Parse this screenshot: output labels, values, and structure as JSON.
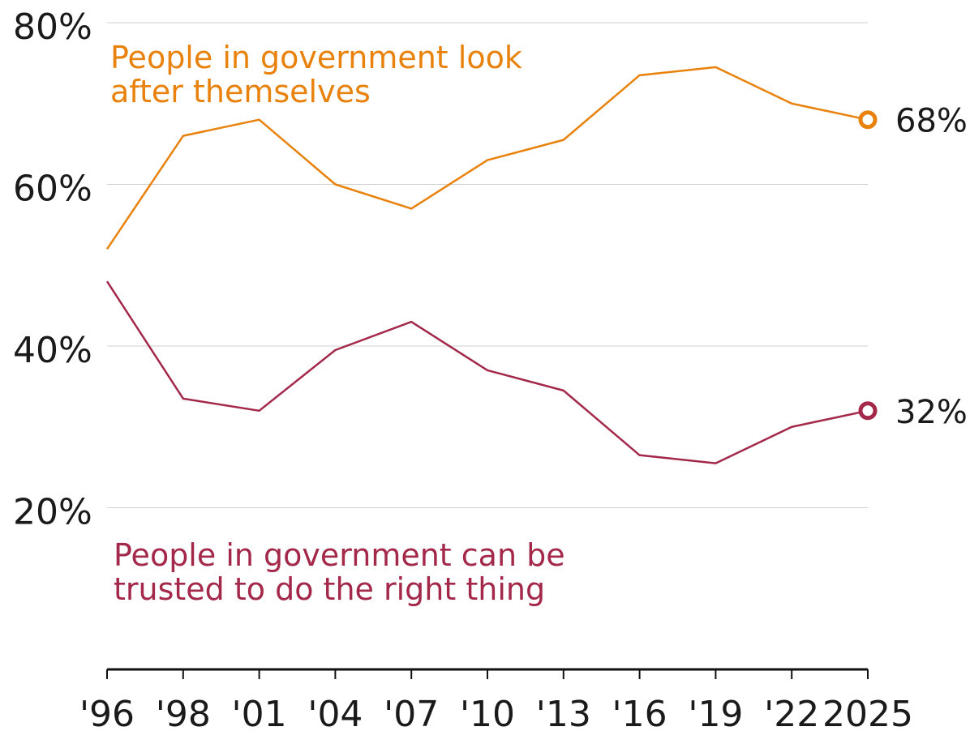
{
  "chart_data": {
    "type": "line",
    "x": [
      "'96",
      "'98",
      "'01",
      "'04",
      "'07",
      "'10",
      "'13",
      "'16",
      "'19",
      "'22",
      "2025"
    ],
    "x_labels": [
      "'96",
      "'98",
      "'01",
      "'04",
      "'07",
      "'10",
      "'13",
      "'16",
      "'19",
      "'22",
      "2025"
    ],
    "y_ticks": [
      20,
      40,
      60,
      80
    ],
    "y_tick_labels": [
      "20%",
      "40%",
      "60%",
      "80%"
    ],
    "ylim": [
      0,
      80
    ],
    "grid": true,
    "series": [
      {
        "name": "People in government look after themselves",
        "name_lines": [
          "People in government look",
          "after themselves"
        ],
        "color": "#E8820C",
        "values": [
          52,
          66,
          68,
          60,
          57,
          63,
          65.5,
          73.5,
          74.5,
          70,
          68
        ],
        "end_label": "68%"
      },
      {
        "name": "People in government can be trusted to do the right thing",
        "name_lines": [
          "People in government can be",
          "trusted to do the right thing"
        ],
        "color": "#A3284A",
        "values": [
          48,
          33.5,
          32,
          39.5,
          43,
          37,
          34.5,
          26.5,
          25.5,
          30,
          32
        ],
        "end_label": "32%"
      }
    ]
  }
}
